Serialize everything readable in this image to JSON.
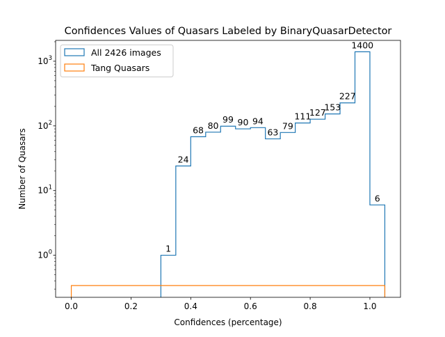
{
  "chart_data": {
    "type": "bar",
    "title": "Confidences Values of Quasars Labeled by BinaryQuasarDetector",
    "xlabel": "Confidences (percentage)",
    "ylabel": "Number of Quasars",
    "xlim": [
      -0.0525,
      1.1025
    ],
    "ylim": [
      0.2236,
      2100
    ],
    "yscale": "log",
    "grid": false,
    "legend_position": "top-left",
    "x_ticks": [
      {
        "value": 0.0,
        "label": "0.0"
      },
      {
        "value": 0.2,
        "label": "0.2"
      },
      {
        "value": 0.4,
        "label": "0.4"
      },
      {
        "value": 0.6,
        "label": "0.6"
      },
      {
        "value": 0.8,
        "label": "0.8"
      },
      {
        "value": 1.0,
        "label": "1.0"
      }
    ],
    "y_ticks": [
      {
        "value": 1,
        "base": "10",
        "exp": "0"
      },
      {
        "value": 10,
        "base": "10",
        "exp": "1"
      },
      {
        "value": 100,
        "base": "10",
        "exp": "2"
      },
      {
        "value": 1000,
        "base": "10",
        "exp": "3"
      }
    ],
    "series": [
      {
        "name": "All 2426 images",
        "color": "#1f77b4",
        "style": "step",
        "bin_edges": [
          0.3,
          0.35,
          0.4,
          0.45,
          0.5,
          0.55,
          0.6,
          0.65,
          0.7,
          0.75,
          0.8,
          0.85,
          0.9,
          0.95,
          1.0,
          1.05
        ],
        "values": [
          1,
          24,
          68,
          80,
          99,
          90,
          94,
          63,
          79,
          111,
          127,
          153,
          227,
          1400,
          6
        ],
        "labels": [
          "1",
          "24",
          "68",
          "80",
          "99",
          "90",
          "94",
          "63",
          "79",
          "111",
          "127",
          "153",
          "227",
          "1400",
          "6"
        ]
      },
      {
        "name": "Tang Quasars",
        "color": "#ff7f0e",
        "style": "step",
        "x_range": [
          0.0,
          1.05
        ],
        "values": [
          0.34
        ]
      }
    ]
  }
}
